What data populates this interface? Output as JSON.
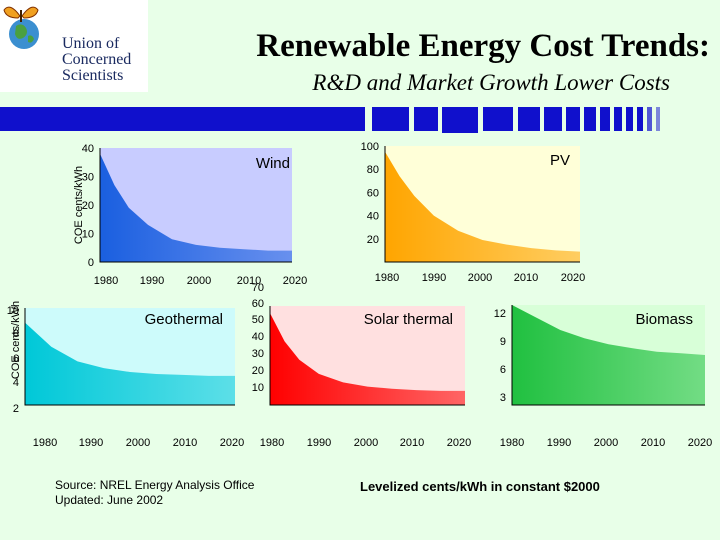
{
  "header": {
    "logo_text": "Union of\nConcerned\nScientists",
    "title": "Renewable Energy Cost Trends:",
    "subtitle": "R&D and Market Growth Lower Costs"
  },
  "footer": {
    "source_line1": "Source:  NREL Energy Analysis Office",
    "source_line2": "Updated:  June 2002",
    "note": "Levelized cents/kWh in constant $2000"
  },
  "colors": {
    "title_bar": "#1010cc",
    "wind": "#1a5fe0",
    "pv": "#ffa500",
    "geothermal": "#00c8d8",
    "solar_thermal": "#ff0000",
    "biomass": "#20c040"
  },
  "chart_data": [
    {
      "type": "area",
      "name": "Wind",
      "ylabel": "COE cents/kWh",
      "x_ticks": [
        "1980",
        "1990",
        "2000",
        "2010",
        "2020"
      ],
      "y_ticks": [
        "0",
        "10",
        "20",
        "30",
        "40"
      ],
      "ylim": [
        0,
        40
      ],
      "xlim": [
        1980,
        2020
      ],
      "x": [
        1980,
        1983,
        1986,
        1990,
        1995,
        2000,
        2005,
        2010,
        2015,
        2020
      ],
      "y": [
        38,
        27,
        19,
        13,
        8,
        6,
        5,
        4.5,
        4,
        4
      ],
      "grid": false
    },
    {
      "type": "area",
      "name": "PV",
      "x_ticks": [
        "1980",
        "1990",
        "2000",
        "2010",
        "2020"
      ],
      "y_ticks": [
        "20",
        "40",
        "60",
        "80",
        "100"
      ],
      "ylim": [
        0,
        100
      ],
      "xlim": [
        1980,
        2020
      ],
      "x": [
        1980,
        1983,
        1986,
        1990,
        1995,
        2000,
        2005,
        2010,
        2015,
        2020
      ],
      "y": [
        95,
        74,
        57,
        40,
        27,
        19,
        15,
        12,
        10,
        9
      ],
      "grid": false
    },
    {
      "type": "area",
      "name": "Geothermal",
      "ylabel": "COE cents/kWh",
      "x_ticks": [
        "1980",
        "1990",
        "2000",
        "2010",
        "2020"
      ],
      "y_ticks": [
        "2",
        "4",
        "6",
        "8",
        "10"
      ],
      "ylim": [
        0,
        10
      ],
      "xlim": [
        1980,
        2020
      ],
      "x": [
        1980,
        1985,
        1990,
        1995,
        2000,
        2005,
        2010,
        2015,
        2020
      ],
      "y": [
        8.5,
        6,
        4.5,
        3.8,
        3.4,
        3.2,
        3.1,
        3.0,
        3.0
      ],
      "grid": false
    },
    {
      "type": "area",
      "name": "Solar thermal",
      "x_ticks": [
        "1980",
        "1990",
        "2000",
        "2010",
        "2020"
      ],
      "y_ticks": [
        "10",
        "20",
        "30",
        "40",
        "50",
        "60",
        "70"
      ],
      "ylim": [
        0,
        70
      ],
      "xlim": [
        1980,
        2020
      ],
      "x": [
        1980,
        1983,
        1986,
        1990,
        1995,
        2000,
        2005,
        2010,
        2015,
        2020
      ],
      "y": [
        65,
        45,
        32,
        22,
        16,
        13,
        11.5,
        10.5,
        10,
        10
      ],
      "grid": false
    },
    {
      "type": "area",
      "name": "Biomass",
      "x_ticks": [
        "1980",
        "1990",
        "2000",
        "2010",
        "2020"
      ],
      "y_ticks": [
        "3",
        "6",
        "9",
        "12"
      ],
      "ylim": [
        0,
        12
      ],
      "xlim": [
        1980,
        2020
      ],
      "x": [
        1980,
        1985,
        1990,
        1995,
        2000,
        2005,
        2010,
        2015,
        2020
      ],
      "y": [
        12,
        10.5,
        9,
        8,
        7.3,
        6.8,
        6.4,
        6.2,
        6.0
      ],
      "grid": false
    }
  ]
}
